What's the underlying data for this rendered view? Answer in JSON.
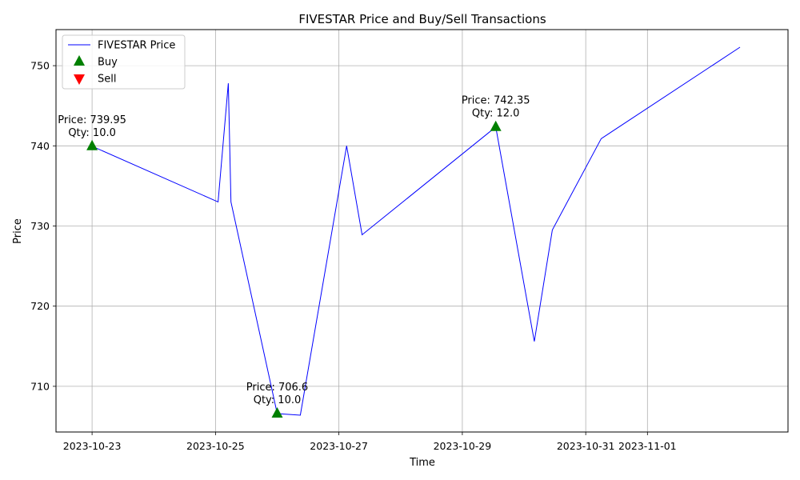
{
  "chart_data": {
    "type": "line",
    "title": "FIVESTAR Price and Buy/Sell Transactions",
    "xlabel": "Time",
    "ylabel": "Price",
    "x_axis": "date",
    "xlim": [
      "2023-10-22T09:58",
      "2023-11-03T06:40"
    ],
    "ylim": [
      704.3,
      754.5
    ],
    "xticks": [
      "2023-10-23",
      "2023-10-25",
      "2023-10-27",
      "2023-10-29",
      "2023-10-31",
      "2023-11-01"
    ],
    "yticks": [
      710,
      720,
      730,
      740,
      750
    ],
    "grid": true,
    "legend": {
      "position": "upper left",
      "entries": [
        {
          "label": "FIVESTAR Price",
          "marker": "line",
          "color": "#0000ff"
        },
        {
          "label": "Buy",
          "marker": "triangle-up",
          "color": "#008000"
        },
        {
          "label": "Sell",
          "marker": "triangle-down",
          "color": "#ff0000"
        }
      ]
    },
    "series": [
      {
        "name": "FIVESTAR Price",
        "color": "#0000ff",
        "points": [
          {
            "x": "2023-10-23T00:00",
            "y": 739.95
          },
          {
            "x": "2023-10-25T01:00",
            "y": 733.0
          },
          {
            "x": "2023-10-25T05:00",
            "y": 747.8
          },
          {
            "x": "2023-10-25T06:00",
            "y": 733.0
          },
          {
            "x": "2023-10-26T00:00",
            "y": 706.6
          },
          {
            "x": "2023-10-26T09:00",
            "y": 706.4
          },
          {
            "x": "2023-10-27T03:00",
            "y": 740.0
          },
          {
            "x": "2023-10-27T09:00",
            "y": 728.9
          },
          {
            "x": "2023-10-29T13:00",
            "y": 742.35
          },
          {
            "x": "2023-10-30T04:00",
            "y": 715.6
          },
          {
            "x": "2023-10-30T11:00",
            "y": 729.5
          },
          {
            "x": "2023-10-31T06:00",
            "y": 740.9
          },
          {
            "x": "2023-11-02T12:00",
            "y": 752.3
          }
        ]
      }
    ],
    "transactions": [
      {
        "type": "Buy",
        "x": "2023-10-23T00:00",
        "price": 739.95,
        "label_price": "Price: 739.95",
        "label_qty": "Qty: 10.0"
      },
      {
        "type": "Buy",
        "x": "2023-10-26T00:00",
        "price": 706.6,
        "label_price": "Price: 706.6",
        "label_qty": "Qty: 10.0"
      },
      {
        "type": "Buy",
        "x": "2023-10-29T13:00",
        "price": 742.35,
        "label_price": "Price: 742.35",
        "label_qty": "Qty: 12.0"
      }
    ]
  }
}
